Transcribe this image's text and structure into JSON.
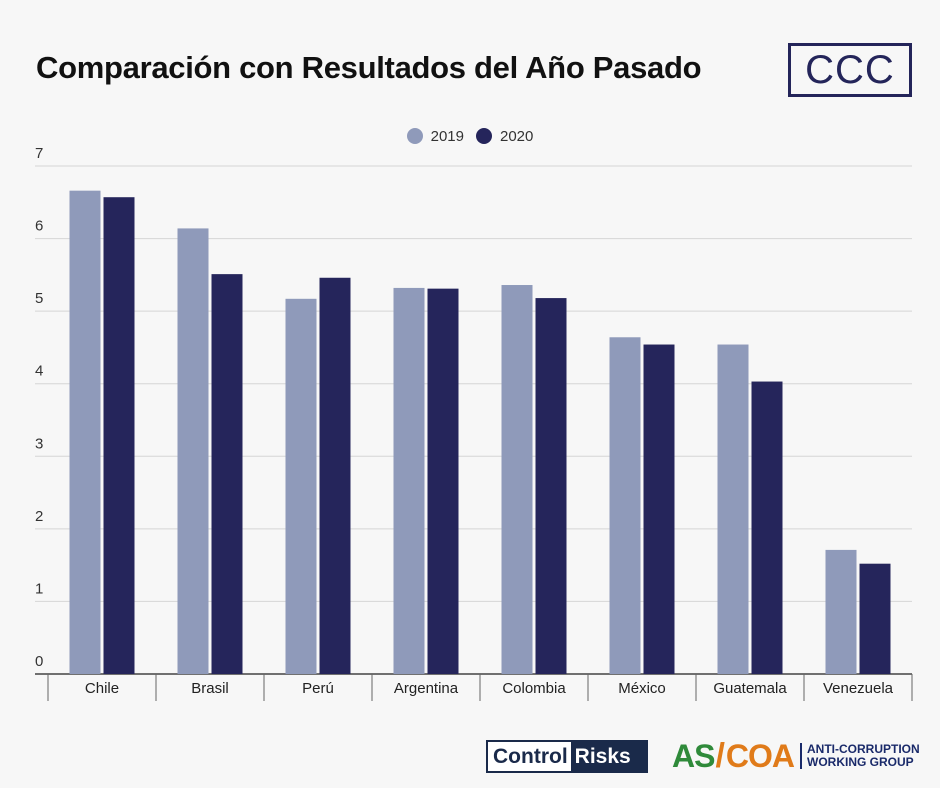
{
  "header": {
    "title": "Comparación con Resultados del Año Pasado",
    "badge": "CCC"
  },
  "logos": {
    "control_risks": {
      "part1": "Control",
      "part2": "Risks"
    },
    "ascoa": {
      "as": "AS",
      "slash": "/",
      "coa": "COA",
      "line1": "ANTI-CORRUPTION",
      "line2": "WORKING GROUP"
    }
  },
  "chart_data": {
    "type": "bar",
    "title": "Comparación con Resultados del Año Pasado",
    "xlabel": "",
    "ylabel": "",
    "categories": [
      "Chile",
      "Brasil",
      "Perú",
      "Argentina",
      "Colombia",
      "México",
      "Guatemala",
      "Venezuela"
    ],
    "series": [
      {
        "name": "2019",
        "color": "#8f9aba",
        "values": [
          6.66,
          6.14,
          5.17,
          5.32,
          5.36,
          4.64,
          4.54,
          1.71
        ]
      },
      {
        "name": "2020",
        "color": "#25255b",
        "values": [
          6.57,
          5.51,
          5.46,
          5.31,
          5.18,
          4.54,
          4.03,
          1.52
        ]
      }
    ],
    "ylim": [
      0,
      7
    ],
    "yticks": [
      0,
      1,
      2,
      3,
      4,
      5,
      6,
      7
    ],
    "grid": true,
    "legend_position": "top-center"
  }
}
